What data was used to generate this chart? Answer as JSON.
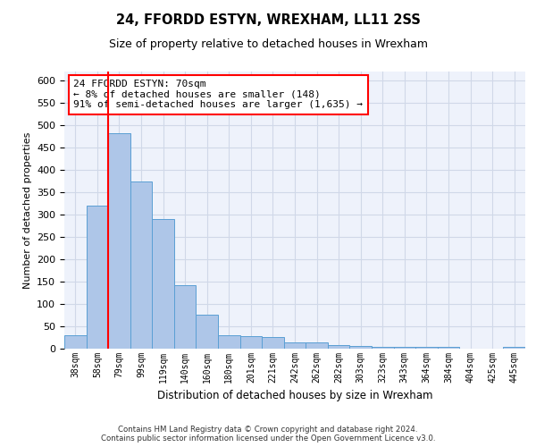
{
  "title1": "24, FFORDD ESTYN, WREXHAM, LL11 2SS",
  "title2": "Size of property relative to detached houses in Wrexham",
  "xlabel": "Distribution of detached houses by size in Wrexham",
  "ylabel": "Number of detached properties",
  "footer": "Contains HM Land Registry data © Crown copyright and database right 2024.\nContains public sector information licensed under the Open Government Licence v3.0.",
  "categories": [
    "38sqm",
    "58sqm",
    "79sqm",
    "99sqm",
    "119sqm",
    "140sqm",
    "160sqm",
    "180sqm",
    "201sqm",
    "221sqm",
    "242sqm",
    "262sqm",
    "282sqm",
    "303sqm",
    "323sqm",
    "343sqm",
    "364sqm",
    "384sqm",
    "404sqm",
    "425sqm",
    "445sqm"
  ],
  "values": [
    30,
    320,
    482,
    375,
    290,
    143,
    76,
    31,
    29,
    27,
    15,
    15,
    8,
    7,
    5,
    4,
    5,
    4,
    0,
    0,
    5
  ],
  "bar_color": "#aec6e8",
  "bar_edge_color": "#5a9fd4",
  "grid_color": "#d0d8e8",
  "background_color": "#eef2fb",
  "vline_x": 1.5,
  "vline_color": "red",
  "annotation_line1": "24 FFORDD ESTYN: 70sqm",
  "annotation_line2": "← 8% of detached houses are smaller (148)",
  "annotation_line3": "91% of semi-detached houses are larger (1,635) →",
  "annotation_box_color": "white",
  "annotation_box_edge_color": "red",
  "ylim": [
    0,
    620
  ],
  "yticks": [
    0,
    50,
    100,
    150,
    200,
    250,
    300,
    350,
    400,
    450,
    500,
    550,
    600
  ]
}
